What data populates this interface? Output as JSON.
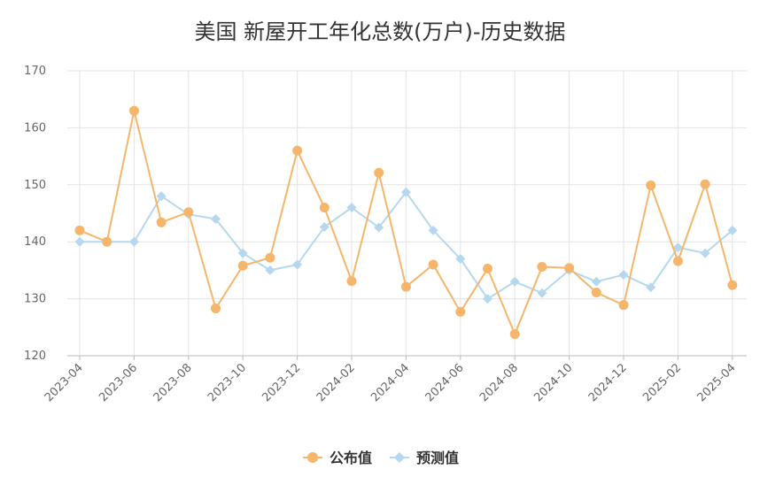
{
  "chart_data": {
    "type": "line",
    "title": "美国 新屋开工年化总数(万户)-历史数据",
    "x": [
      "2023-04",
      "2023-05",
      "2023-06",
      "2023-07",
      "2023-08",
      "2023-09",
      "2023-10",
      "2023-11",
      "2023-12",
      "2024-01",
      "2024-02",
      "2024-03",
      "2024-04",
      "2024-05",
      "2024-06",
      "2024-07",
      "2024-08",
      "2024-09",
      "2024-10",
      "2024-11",
      "2024-12",
      "2025-01",
      "2025-02",
      "2025-03",
      "2025-04"
    ],
    "x_tick_labels": [
      "2023-04",
      "2023-06",
      "2023-08",
      "2023-10",
      "2023-12",
      "2024-02",
      "2024-04",
      "2024-06",
      "2024-08",
      "2024-10",
      "2024-12",
      "2025-02",
      "2025-04"
    ],
    "ylim": [
      120,
      170
    ],
    "y_ticks": [
      120,
      130,
      140,
      150,
      160,
      170
    ],
    "grid": true,
    "legend_position": "bottom",
    "series": [
      {
        "name": "公布值",
        "color": "#F5B66B",
        "marker": "circle",
        "values": [
          142,
          140,
          163,
          143.4,
          145.2,
          128.3,
          135.8,
          137.2,
          156,
          146,
          133.1,
          152.1,
          132.1,
          136,
          127.7,
          135.3,
          123.8,
          135.6,
          135.4,
          131.1,
          128.9,
          149.9,
          136.6,
          150.1,
          132.4
        ]
      },
      {
        "name": "预测值",
        "color": "#B5D8F0",
        "marker": "diamond",
        "values": [
          140,
          140,
          140,
          148,
          144.8,
          144,
          138,
          135,
          136,
          142.6,
          146,
          142.5,
          148.7,
          142,
          137,
          130,
          133,
          131,
          135,
          133,
          134.2,
          132,
          139,
          138,
          142
        ]
      }
    ]
  }
}
